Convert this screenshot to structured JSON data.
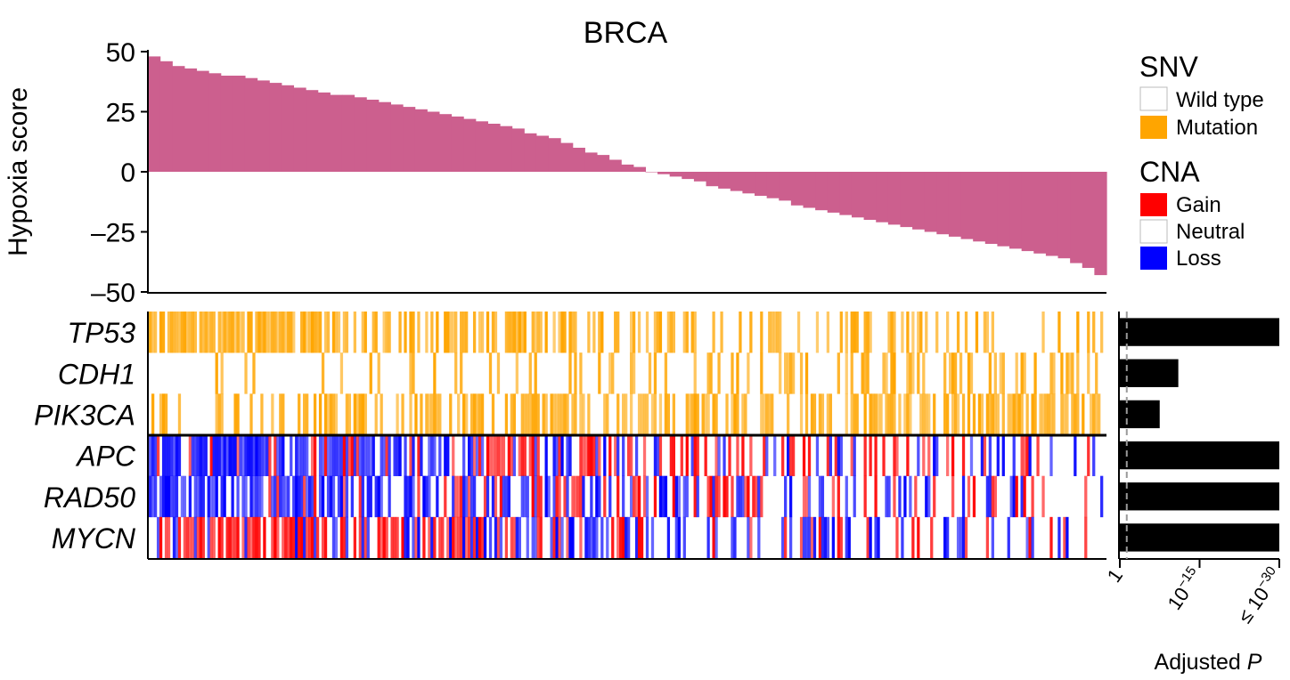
{
  "chart_data": [
    {
      "type": "bar",
      "title": "BRCA",
      "ylabel": "Hypoxia score",
      "ylim": [
        -50,
        50
      ],
      "yticks": [
        50,
        25,
        0,
        -25,
        -50
      ],
      "ytick_labels": [
        "50",
        "25",
        "0",
        "–25",
        "–50"
      ],
      "bar_color": "#cc5f8e",
      "x_order": "sorted-descending",
      "values": [
        48,
        46,
        44,
        43,
        42,
        41,
        40,
        40,
        39,
        38,
        37,
        36,
        35,
        34,
        33,
        32,
        32,
        31,
        30,
        29,
        28,
        27,
        26,
        25,
        24,
        23,
        22,
        21,
        20,
        19,
        18,
        16,
        15,
        14,
        12,
        10,
        8,
        7,
        5,
        3,
        2,
        0,
        -1,
        -2,
        -3,
        -4,
        -6,
        -7,
        -8,
        -9,
        -10,
        -11,
        -12,
        -14,
        -15,
        -16,
        -17,
        -18,
        -19,
        -20,
        -21,
        -22,
        -23,
        -24,
        -25,
        -26,
        -27,
        -28,
        -29,
        -30,
        -31,
        -32,
        -33,
        -34,
        -35,
        -36,
        -38,
        -40,
        -43
      ]
    },
    {
      "type": "heatmap",
      "rows": [
        "TP53",
        "CDH1",
        "PIK3CA",
        "APC",
        "RAD50",
        "MYCN"
      ],
      "row_kinds": [
        "SNV",
        "SNV",
        "SNV",
        "CNA",
        "CNA",
        "CNA"
      ],
      "columns": 360,
      "column_order": "sorted by hypoxia score, descending",
      "SNV_mutation_fraction_by_third": {
        "TP53": [
          0.8,
          0.45,
          0.15
        ],
        "CDH1": [
          0.05,
          0.2,
          0.45
        ],
        "PIK3CA": [
          0.3,
          0.55,
          0.7
        ]
      },
      "CNA_fraction_by_third": {
        "APC": {
          "loss": [
            0.82,
            0.2,
            0.05
          ],
          "gain": [
            0.05,
            0.35,
            0.25
          ]
        },
        "RAD50": {
          "loss": [
            0.78,
            0.3,
            0.1
          ],
          "gain": [
            0.05,
            0.3,
            0.2
          ]
        },
        "MYCN": {
          "loss": [
            0.05,
            0.35,
            0.2
          ],
          "gain": [
            0.75,
            0.15,
            0.05
          ]
        }
      },
      "colors": {
        "Wild type": "#ffffff",
        "Mutation": "#ffa500",
        "Gain": "#ff0000",
        "Neutral": "#ffffff",
        "Loss": "#0000ff"
      }
    },
    {
      "type": "bar",
      "orientation": "horizontal",
      "categories": [
        "TP53",
        "CDH1",
        "PIK3CA",
        "APC",
        "RAD50",
        "MYCN"
      ],
      "values_neg_log10_p": [
        30,
        11,
        7.5,
        30,
        30,
        30
      ],
      "bar_color": "#000000",
      "xlim_neg_log10": [
        0,
        30
      ],
      "xticks": [
        0,
        15,
        30
      ],
      "tick_labels": [
        "1",
        "10",
        "≤ 10"
      ],
      "tick_exponents": [
        "",
        "−15",
        "−30"
      ],
      "threshold_neg_log10": 1.3,
      "xlabel": "Adjusted",
      "xlabel_italic": "P"
    }
  ],
  "legend": {
    "snv": {
      "title": "SNV",
      "items": [
        {
          "label": "Wild type",
          "color": "#ffffff"
        },
        {
          "label": "Mutation",
          "color": "#ffa500"
        }
      ]
    },
    "cna": {
      "title": "CNA",
      "items": [
        {
          "label": "Gain",
          "color": "#ff0000"
        },
        {
          "label": "Neutral",
          "color": "#ffffff"
        },
        {
          "label": "Loss",
          "color": "#0000ff"
        }
      ]
    }
  }
}
